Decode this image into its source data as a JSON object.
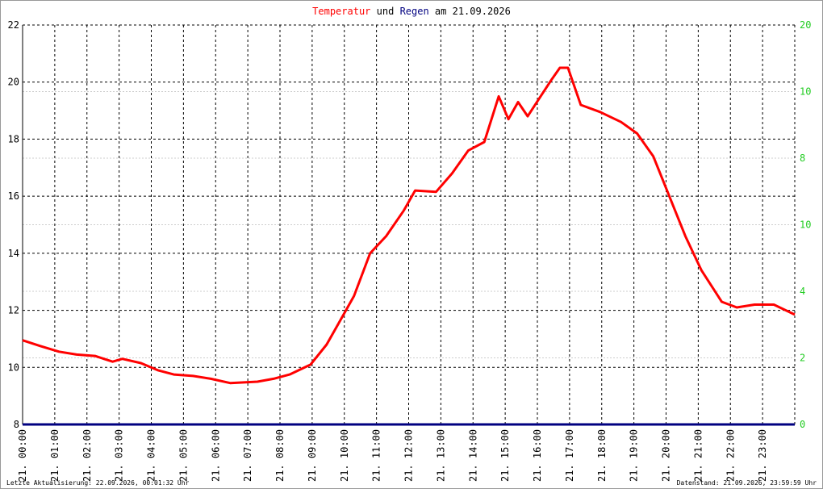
{
  "chart_data": {
    "type": "line",
    "title_connector": "und",
    "title_date": "am 21.09.2026",
    "x": [
      0,
      0.55,
      1.13,
      1.68,
      2.25,
      2.8,
      3.1,
      3.68,
      4.2,
      4.7,
      5.3,
      5.85,
      6.45,
      7.3,
      7.8,
      8.3,
      8.95,
      9.45,
      9.8,
      10.3,
      10.8,
      11.3,
      11.85,
      12.2,
      12.85,
      13.35,
      13.85,
      14.35,
      14.8,
      15.1,
      15.4,
      15.7,
      16.1,
      16.45,
      16.7,
      16.95,
      17.35,
      17.95,
      18.6,
      19.1,
      19.6,
      20.1,
      20.6,
      21.1,
      21.73,
      22.2,
      22.75,
      23.35,
      24
    ],
    "series": [
      {
        "name": "Temperatur",
        "color": "#ff0000",
        "values": [
          10.95,
          10.75,
          10.55,
          10.45,
          10.4,
          10.2,
          10.3,
          10.15,
          9.9,
          9.75,
          9.7,
          9.6,
          9.45,
          9.5,
          9.6,
          9.75,
          10.1,
          10.8,
          11.5,
          12.5,
          14.0,
          14.6,
          15.5,
          16.2,
          16.15,
          16.8,
          17.6,
          17.9,
          19.5,
          18.7,
          19.3,
          18.8,
          19.5,
          20.1,
          20.5,
          20.5,
          19.2,
          18.95,
          18.6,
          18.2,
          17.4,
          16.0,
          14.6,
          13.4,
          12.3,
          12.1,
          12.2,
          12.2,
          11.85
        ]
      },
      {
        "name": "Regen",
        "color": "#000080",
        "axis": "y2",
        "x": [
          0,
          24
        ],
        "values": [
          0,
          0
        ]
      }
    ],
    "xlim": [
      0,
      24
    ],
    "xticks": [
      {
        "value": 0,
        "label": "21. 00:00"
      },
      {
        "value": 1,
        "label": "21. 01:00"
      },
      {
        "value": 2,
        "label": "21. 02:00"
      },
      {
        "value": 3,
        "label": "21. 03:00"
      },
      {
        "value": 4,
        "label": "21. 04:00"
      },
      {
        "value": 5,
        "label": "21. 05:00"
      },
      {
        "value": 6,
        "label": "21. 06:00"
      },
      {
        "value": 7,
        "label": "21. 07:00"
      },
      {
        "value": 8,
        "label": "21. 08:00"
      },
      {
        "value": 9,
        "label": "21. 09:00"
      },
      {
        "value": 10,
        "label": "21. 10:00"
      },
      {
        "value": 11,
        "label": "21. 11:00"
      },
      {
        "value": 12,
        "label": "21. 12:00"
      },
      {
        "value": 13,
        "label": "21. 13:00"
      },
      {
        "value": 14,
        "label": "21. 14:00"
      },
      {
        "value": 15,
        "label": "21. 15:00"
      },
      {
        "value": 16,
        "label": "21. 16:00"
      },
      {
        "value": 17,
        "label": "21. 17:00"
      },
      {
        "value": 18,
        "label": "21. 18:00"
      },
      {
        "value": 19,
        "label": "21. 19:00"
      },
      {
        "value": 20,
        "label": "21. 20:00"
      },
      {
        "value": 21,
        "label": "21. 21:00"
      },
      {
        "value": 22,
        "label": "21. 22:00"
      },
      {
        "value": 23,
        "label": "21. 23:00"
      }
    ],
    "ylim": [
      8,
      22
    ],
    "yticks": [
      8,
      10,
      12,
      14,
      16,
      18,
      20,
      22
    ],
    "y2lim": [
      0,
      20
    ],
    "y2_labels": [
      "20",
      "10",
      "8",
      "10",
      "4",
      "2",
      "0"
    ],
    "y2_color": "#22cc22",
    "grid": true,
    "footer_left": "Letzte Aktualisierung: 22.09.2026, 00:01:32 Uhr",
    "footer_right": "Datenstand: 21.09.2026, 23:59:59 Uhr"
  }
}
